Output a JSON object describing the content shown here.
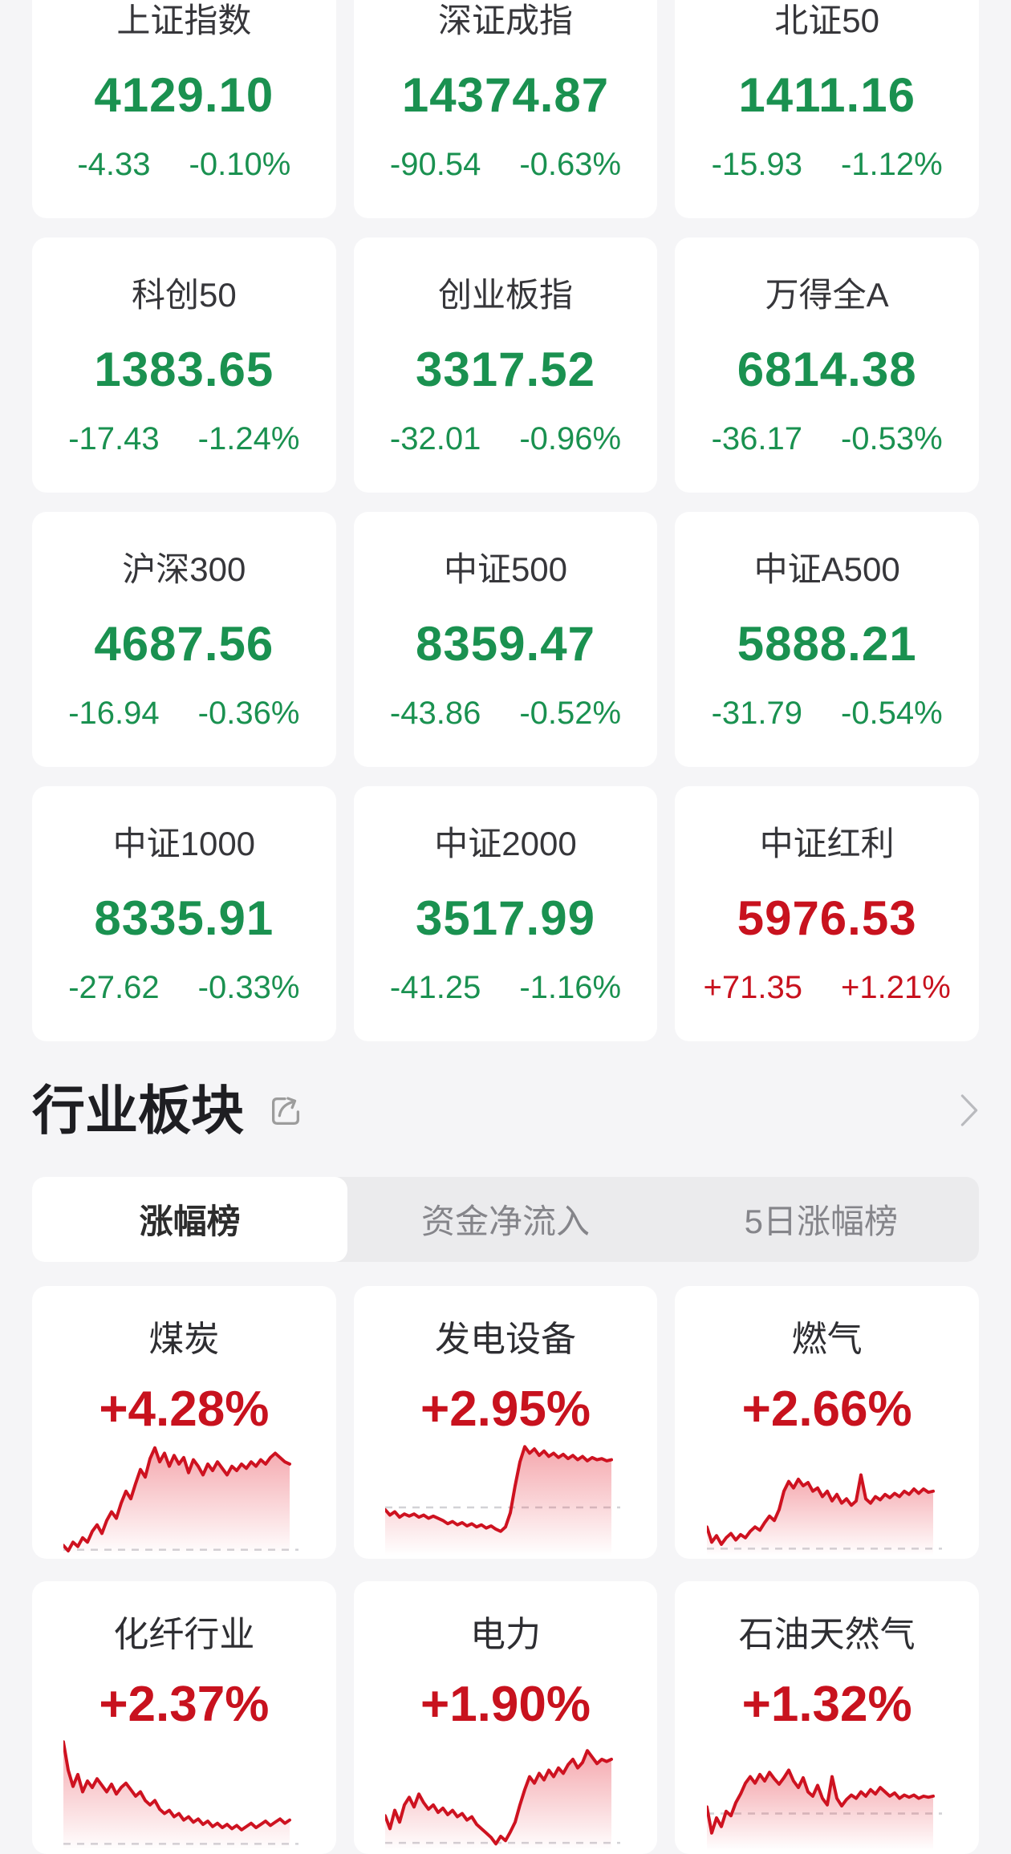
{
  "colors": {
    "green": "#1a9150",
    "red": "#c8121e",
    "chart_line": "#ce1220",
    "chart_fill_top": "rgba(232,62,75,0.45)",
    "chart_fill_bottom": "rgba(232,62,75,0)",
    "baseline": "#d2d2d6",
    "page_bg": "#f5f5f7",
    "card_bg": "#ffffff",
    "title": "#36363a",
    "heading": "#1e1e22",
    "tab_bg": "#ebebed",
    "tab_inactive": "#85858a",
    "tab_active_text": "#2c2c2c",
    "icon": "#9c9c9c",
    "chevron": "#b9babe",
    "sector_title": "#2e2e32"
  },
  "index_cards": [
    {
      "name": "上证指数",
      "value": "4129.10",
      "change": "-4.33",
      "pct": "-0.10%",
      "dir": "down"
    },
    {
      "name": "深证成指",
      "value": "14374.87",
      "change": "-90.54",
      "pct": "-0.63%",
      "dir": "down"
    },
    {
      "name": "北证50",
      "value": "1411.16",
      "change": "-15.93",
      "pct": "-1.12%",
      "dir": "down"
    },
    {
      "name": "科创50",
      "value": "1383.65",
      "change": "-17.43",
      "pct": "-1.24%",
      "dir": "down"
    },
    {
      "name": "创业板指",
      "value": "3317.52",
      "change": "-32.01",
      "pct": "-0.96%",
      "dir": "down"
    },
    {
      "name": "万得全A",
      "value": "6814.38",
      "change": "-36.17",
      "pct": "-0.53%",
      "dir": "down"
    },
    {
      "name": "沪深300",
      "value": "4687.56",
      "change": "-16.94",
      "pct": "-0.36%",
      "dir": "down"
    },
    {
      "name": "中证500",
      "value": "8359.47",
      "change": "-43.86",
      "pct": "-0.52%",
      "dir": "down"
    },
    {
      "name": "中证A500",
      "value": "5888.21",
      "change": "-31.79",
      "pct": "-0.54%",
      "dir": "down"
    },
    {
      "name": "中证1000",
      "value": "8335.91",
      "change": "-27.62",
      "pct": "-0.33%",
      "dir": "down"
    },
    {
      "name": "中证2000",
      "value": "3517.99",
      "change": "-41.25",
      "pct": "-1.16%",
      "dir": "down"
    },
    {
      "name": "中证红利",
      "value": "5976.53",
      "change": "+71.35",
      "pct": "+1.21%",
      "dir": "up"
    }
  ],
  "section": {
    "title": "行业板块"
  },
  "tabs": [
    {
      "label": "涨幅榜",
      "active": true
    },
    {
      "label": "资金净流入",
      "active": false
    },
    {
      "label": "5日涨幅榜",
      "active": false
    }
  ],
  "sectors": [
    {
      "name": "煤炭",
      "pct": "+4.28%",
      "dir": "up",
      "spark": {
        "baseline": 0.01,
        "points": [
          0.05,
          0.0,
          0.08,
          0.04,
          0.12,
          0.08,
          0.18,
          0.24,
          0.16,
          0.28,
          0.36,
          0.3,
          0.44,
          0.55,
          0.48,
          0.62,
          0.75,
          0.68,
          0.85,
          0.95,
          0.82,
          0.9,
          0.78,
          0.88,
          0.8,
          0.86,
          0.72,
          0.84,
          0.78,
          0.7,
          0.8,
          0.74,
          0.82,
          0.76,
          0.7,
          0.78,
          0.74,
          0.8,
          0.76,
          0.82,
          0.78,
          0.84,
          0.8,
          0.86,
          0.9,
          0.86,
          0.82,
          0.8
        ]
      }
    },
    {
      "name": "发电设备",
      "pct": "+2.95%",
      "dir": "up",
      "spark": {
        "baseline": 0.4,
        "points": [
          0.38,
          0.33,
          0.36,
          0.31,
          0.34,
          0.32,
          0.34,
          0.31,
          0.33,
          0.3,
          0.32,
          0.3,
          0.28,
          0.25,
          0.27,
          0.24,
          0.26,
          0.23,
          0.25,
          0.22,
          0.24,
          0.21,
          0.23,
          0.2,
          0.18,
          0.22,
          0.35,
          0.6,
          0.82,
          0.96,
          0.9,
          0.94,
          0.88,
          0.92,
          0.87,
          0.9,
          0.86,
          0.89,
          0.85,
          0.88,
          0.84,
          0.87,
          0.83,
          0.86,
          0.84,
          0.85,
          0.83,
          0.84
        ]
      }
    },
    {
      "name": "燃气",
      "pct": "+2.66%",
      "dir": "up",
      "spark": {
        "baseline": 0.02,
        "points": [
          0.22,
          0.08,
          0.14,
          0.06,
          0.12,
          0.16,
          0.1,
          0.15,
          0.12,
          0.18,
          0.22,
          0.19,
          0.26,
          0.32,
          0.28,
          0.38,
          0.55,
          0.64,
          0.58,
          0.66,
          0.6,
          0.63,
          0.55,
          0.58,
          0.5,
          0.55,
          0.46,
          0.52,
          0.44,
          0.48,
          0.42,
          0.46,
          0.7,
          0.48,
          0.44,
          0.5,
          0.47,
          0.52,
          0.49,
          0.53,
          0.5,
          0.55,
          0.52,
          0.57,
          0.53,
          0.57,
          0.54,
          0.55
        ]
      }
    },
    {
      "name": "化纤行业",
      "pct": "+2.37%",
      "dir": "up",
      "spark": {
        "baseline": 0.02,
        "points": [
          0.96,
          0.7,
          0.55,
          0.66,
          0.5,
          0.6,
          0.54,
          0.62,
          0.56,
          0.5,
          0.57,
          0.48,
          0.54,
          0.58,
          0.52,
          0.46,
          0.5,
          0.42,
          0.38,
          0.42,
          0.34,
          0.3,
          0.33,
          0.27,
          0.3,
          0.24,
          0.27,
          0.22,
          0.25,
          0.2,
          0.23,
          0.18,
          0.21,
          0.17,
          0.2,
          0.16,
          0.19,
          0.15,
          0.18,
          0.21,
          0.17,
          0.2,
          0.23,
          0.19,
          0.22,
          0.25,
          0.21,
          0.24
        ]
      }
    },
    {
      "name": "电力",
      "pct": "+1.90%",
      "dir": "up",
      "spark": {
        "baseline": 0.03,
        "points": [
          0.28,
          0.16,
          0.33,
          0.22,
          0.38,
          0.45,
          0.36,
          0.48,
          0.4,
          0.34,
          0.38,
          0.31,
          0.35,
          0.29,
          0.33,
          0.27,
          0.3,
          0.24,
          0.27,
          0.2,
          0.16,
          0.12,
          0.08,
          0.02,
          0.09,
          0.05,
          0.13,
          0.22,
          0.38,
          0.52,
          0.64,
          0.58,
          0.67,
          0.61,
          0.7,
          0.64,
          0.72,
          0.67,
          0.75,
          0.8,
          0.72,
          0.77,
          0.88,
          0.82,
          0.76,
          0.8,
          0.78,
          0.8
        ]
      }
    },
    {
      "name": "石油天然气",
      "pct": "+1.32%",
      "dir": "up",
      "spark": {
        "baseline": 0.3,
        "points": [
          0.36,
          0.12,
          0.26,
          0.18,
          0.32,
          0.28,
          0.4,
          0.48,
          0.58,
          0.64,
          0.58,
          0.66,
          0.6,
          0.68,
          0.62,
          0.57,
          0.63,
          0.7,
          0.6,
          0.54,
          0.63,
          0.5,
          0.46,
          0.56,
          0.44,
          0.38,
          0.64,
          0.44,
          0.37,
          0.43,
          0.47,
          0.44,
          0.5,
          0.46,
          0.52,
          0.48,
          0.54,
          0.5,
          0.46,
          0.49,
          0.44,
          0.47,
          0.45,
          0.47,
          0.44,
          0.46,
          0.45,
          0.46
        ]
      }
    }
  ]
}
